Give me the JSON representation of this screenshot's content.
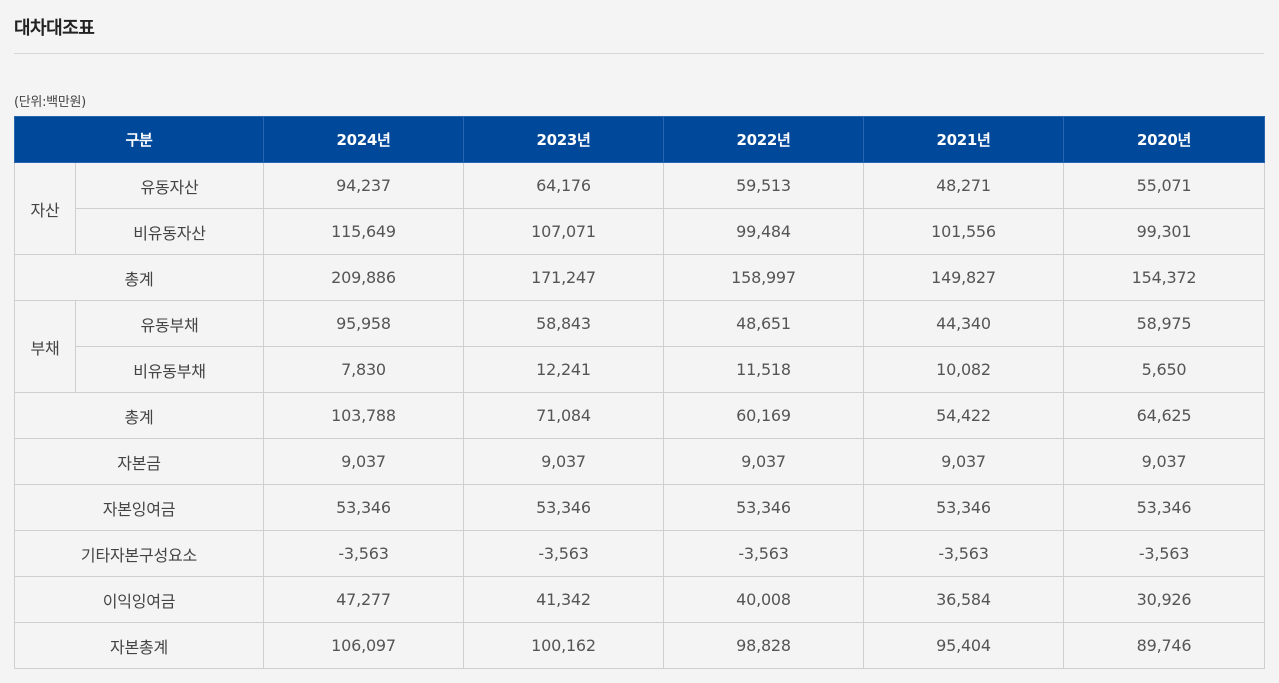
{
  "page_title": "대차대조표",
  "unit_label": "(단위:백만원)",
  "table": {
    "header": {
      "category": "구분",
      "years": [
        "2024년",
        "2023년",
        "2022년",
        "2021년",
        "2020년"
      ]
    },
    "assets": {
      "group_label": "자산",
      "rows": [
        {
          "label": "유동자산",
          "values": [
            "94,237",
            "64,176",
            "59,513",
            "48,271",
            "55,071"
          ]
        },
        {
          "label": "비유동자산",
          "values": [
            "115,649",
            "107,071",
            "99,484",
            "101,556",
            "99,301"
          ]
        }
      ],
      "total": {
        "label": "총계",
        "values": [
          "209,886",
          "171,247",
          "158,997",
          "149,827",
          "154,372"
        ]
      }
    },
    "liabilities": {
      "group_label": "부채",
      "rows": [
        {
          "label": "유동부채",
          "values": [
            "95,958",
            "58,843",
            "48,651",
            "44,340",
            "58,975"
          ]
        },
        {
          "label": "비유동부채",
          "values": [
            "7,830",
            "12,241",
            "11,518",
            "10,082",
            "5,650"
          ]
        }
      ],
      "total": {
        "label": "총계",
        "values": [
          "103,788",
          "71,084",
          "60,169",
          "54,422",
          "64,625"
        ]
      }
    },
    "equity_rows": [
      {
        "label": "자본금",
        "values": [
          "9,037",
          "9,037",
          "9,037",
          "9,037",
          "9,037"
        ]
      },
      {
        "label": "자본잉여금",
        "values": [
          "53,346",
          "53,346",
          "53,346",
          "53,346",
          "53,346"
        ]
      },
      {
        "label": "기타자본구성요소",
        "values": [
          "-3,563",
          "-3,563",
          "-3,563",
          "-3,563",
          "-3,563"
        ]
      },
      {
        "label": "이익잉여금",
        "values": [
          "47,277",
          "41,342",
          "40,008",
          "36,584",
          "30,926"
        ]
      },
      {
        "label": "자본총계",
        "values": [
          "106,097",
          "100,162",
          "98,828",
          "95,404",
          "89,746"
        ]
      }
    ]
  }
}
